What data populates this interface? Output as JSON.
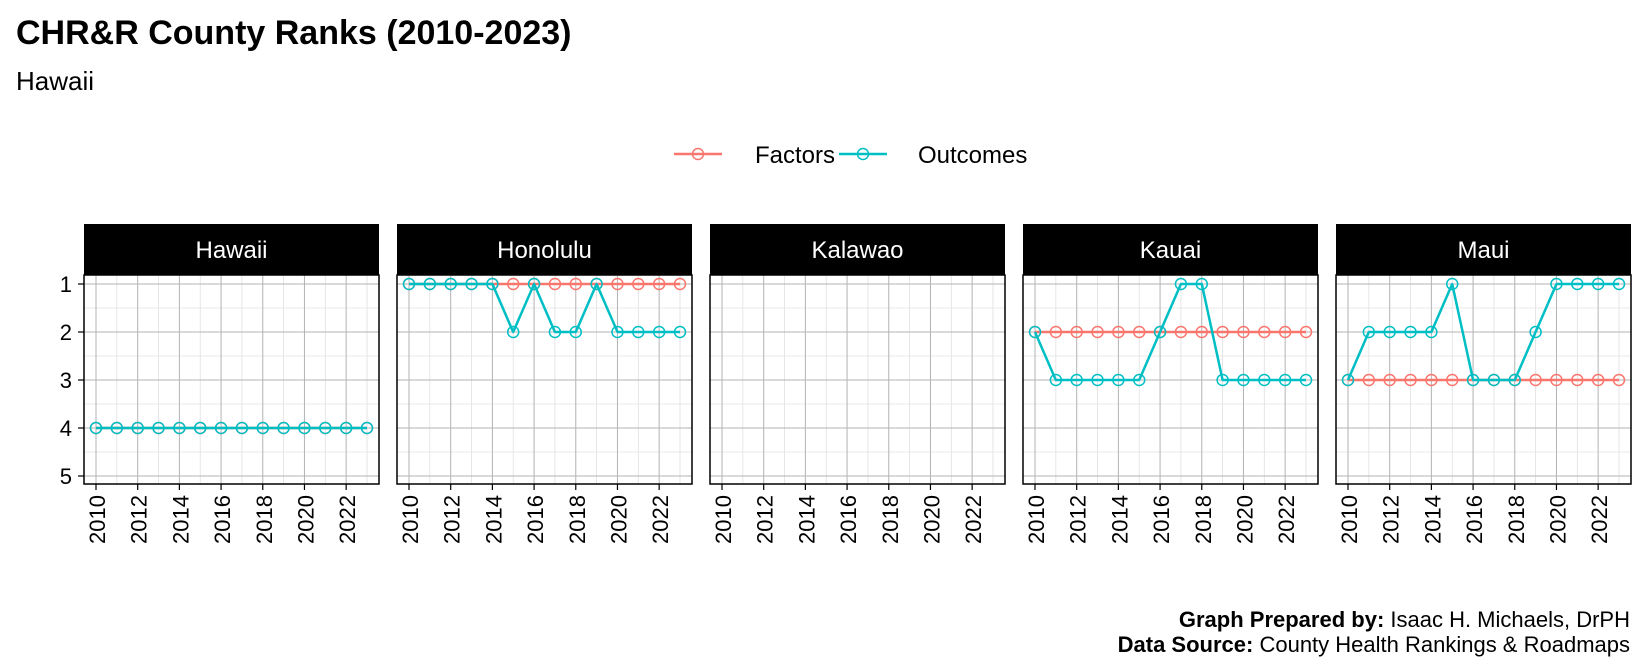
{
  "title": "CHR&R County Ranks (2010-2023)",
  "subtitle": "Hawaii",
  "caption": {
    "line1_bold": "Graph Prepared by:",
    "line1_text": " Isaac H. Michaels, DrPH",
    "line2_bold": "Data Source:",
    "line2_text": " County Health Rankings & Roadmaps"
  },
  "colors": {
    "Factors": "#F8766D",
    "Outcomes": "#00BFC4",
    "strip_bg": "#000000",
    "strip_text": "#ffffff"
  },
  "chart_data": {
    "type": "line",
    "x_ticks": [
      2010,
      2012,
      2014,
      2016,
      2018,
      2020,
      2022
    ],
    "y_ticks": [
      1,
      2,
      3,
      4,
      5
    ],
    "xlim": [
      2010,
      2023
    ],
    "ylim": [
      1,
      5
    ],
    "y_reversed": true,
    "grid": true,
    "legend": {
      "position": "top",
      "entries": [
        "Factors",
        "Outcomes"
      ]
    },
    "x": [
      2010,
      2011,
      2012,
      2013,
      2014,
      2015,
      2016,
      2017,
      2018,
      2019,
      2020,
      2021,
      2022,
      2023
    ],
    "panels": [
      {
        "name": "Hawaii",
        "series": [
          {
            "name": "Factors",
            "values": [
              4,
              4,
              4,
              4,
              4,
              4,
              4,
              4,
              4,
              4,
              4,
              4,
              4,
              4
            ]
          },
          {
            "name": "Outcomes",
            "values": [
              4,
              4,
              4,
              4,
              4,
              4,
              4,
              4,
              4,
              4,
              4,
              4,
              4,
              4
            ]
          }
        ]
      },
      {
        "name": "Honolulu",
        "series": [
          {
            "name": "Factors",
            "values": [
              1,
              1,
              1,
              1,
              1,
              1,
              1,
              1,
              1,
              1,
              1,
              1,
              1,
              1
            ]
          },
          {
            "name": "Outcomes",
            "values": [
              1,
              1,
              1,
              1,
              1,
              2,
              1,
              2,
              2,
              1,
              2,
              2,
              2,
              2
            ]
          }
        ]
      },
      {
        "name": "Kalawao",
        "series": []
      },
      {
        "name": "Kauai",
        "series": [
          {
            "name": "Factors",
            "values": [
              2,
              2,
              2,
              2,
              2,
              2,
              2,
              2,
              2,
              2,
              2,
              2,
              2,
              2
            ]
          },
          {
            "name": "Outcomes",
            "values": [
              2,
              3,
              3,
              3,
              3,
              3,
              2,
              1,
              1,
              3,
              3,
              3,
              3,
              3
            ]
          }
        ]
      },
      {
        "name": "Maui",
        "series": [
          {
            "name": "Factors",
            "values": [
              3,
              3,
              3,
              3,
              3,
              3,
              3,
              3,
              3,
              3,
              3,
              3,
              3,
              3
            ]
          },
          {
            "name": "Outcomes",
            "values": [
              3,
              2,
              2,
              2,
              2,
              1,
              3,
              3,
              3,
              2,
              1,
              1,
              1,
              1
            ]
          }
        ]
      }
    ]
  }
}
